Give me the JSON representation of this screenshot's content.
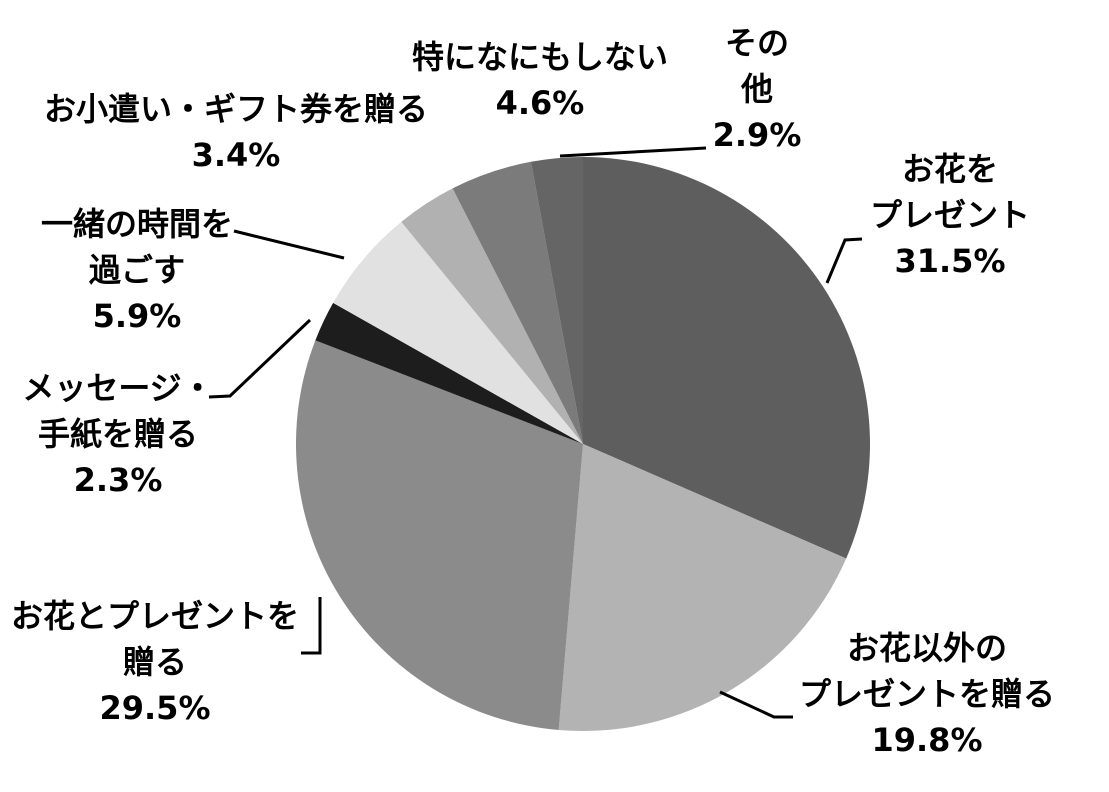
{
  "chart_data": {
    "type": "pie",
    "title": "",
    "legend_position": "none",
    "background_color": "#ffffff",
    "label_text_color": "#000000",
    "leader_line_color": "#000000",
    "start_angle_deg": 0,
    "direction": "clockwise",
    "value_unit": "%",
    "series": [
      {
        "name": "お花をプレゼント",
        "value": 31.5,
        "pct_label": "31.5%",
        "label_lines": [
          "お花を",
          "プレゼント"
        ],
        "color": "#5e5e5e"
      },
      {
        "name": "お花以外のプレゼントを贈る",
        "value": 19.8,
        "pct_label": "19.8%",
        "label_lines": [
          "お花以外の",
          "プレゼントを贈る"
        ],
        "color": "#b3b3b3"
      },
      {
        "name": "お花とプレゼントを贈る",
        "value": 29.5,
        "pct_label": "29.5%",
        "label_lines": [
          "お花とプレゼントを",
          "贈る"
        ],
        "color": "#8b8b8b"
      },
      {
        "name": "メッセージ・手紙を贈る",
        "value": 2.3,
        "pct_label": "2.3%",
        "label_lines": [
          "メッセージ・",
          "手紙を贈る"
        ],
        "color": "#1d1d1d"
      },
      {
        "name": "一緒の時間を過ごす",
        "value": 5.9,
        "pct_label": "5.9%",
        "label_lines": [
          "一緒の時間を",
          "過ごす"
        ],
        "color": "#e1e1e1"
      },
      {
        "name": "お小遣い・ギフト券を贈る",
        "value": 3.4,
        "pct_label": "3.4%",
        "label_lines": [
          "お小遣い・ギフト券を贈る"
        ],
        "color": "#b1b1b1"
      },
      {
        "name": "特になにもしない",
        "value": 4.6,
        "pct_label": "4.6%",
        "label_lines": [
          "特になにもしない"
        ],
        "color": "#7b7b7b"
      },
      {
        "name": "その他",
        "value": 2.9,
        "pct_label": "2.9%",
        "label_lines": [
          "その",
          "他"
        ],
        "color": "#656565"
      }
    ]
  }
}
